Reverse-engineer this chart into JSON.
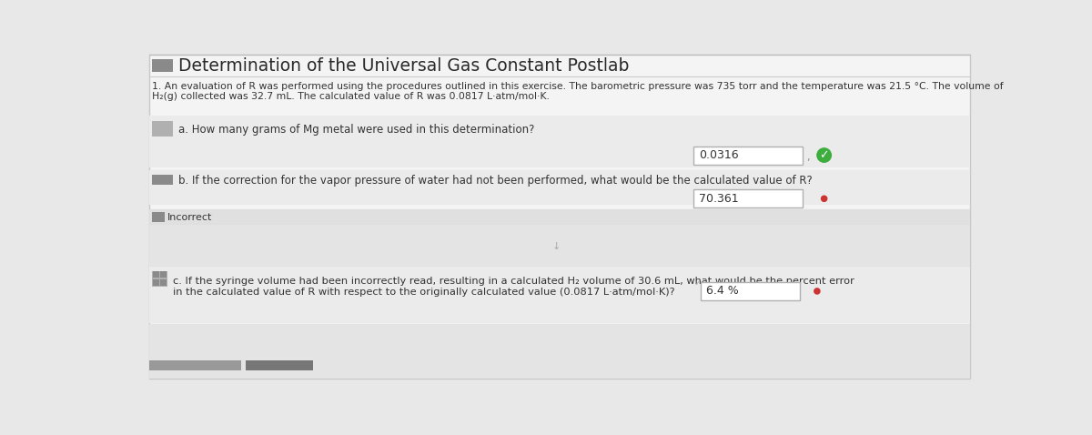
{
  "title": "Determination of the Universal Gas Constant Postlab",
  "intro_line1": "1. An evaluation of R was performed using the procedures outlined in this exercise. The barometric pressure was 735 torr and the temperature was 21.5 °C. The volume of",
  "intro_line2": "H₂(g) collected was 32.7 mL. The calculated value of R was 0.0817 L·atm/mol·K.",
  "qa_a_question": "a. How many grams of Mg metal were used in this determination?",
  "qa_a_answer": "0.0316",
  "qa_b_question": "b. If the correction for the vapor pressure of water had not been performed, what would be the calculated value of R?",
  "qa_b_answer": "70.361",
  "incorrect_label": "Incorrect",
  "qa_c_line1": "c. If the syringe volume had been incorrectly read, resulting in a calculated H₂ volume of 30.6 mL, what would be the percent error",
  "qa_c_line2": "in the calculated value of R with respect to the originally calculated value (0.0817 L·atm/mol·K)?",
  "qa_c_answer": "6.4 %",
  "bg_color": "#e8e8e8",
  "panel_bg": "#f4f4f4",
  "panel_border": "#c8c8c8",
  "text_color": "#2a2a2a",
  "small_text_color": "#333333",
  "tab_gray_dark": "#8a8a8a",
  "tab_gray_light": "#b0b0b0",
  "line_color": "#cccccc",
  "answer_box_bg": "#ffffff",
  "answer_box_border": "#b0b0b0",
  "correct_green": "#3dae3d",
  "incorrect_red": "#cc3333",
  "incorrect_bg": "#c0c0c0",
  "section_gray_bg": "#e0e0e0",
  "bottom_bar_color": "#999999",
  "bottom_bar2_color": "#777777"
}
